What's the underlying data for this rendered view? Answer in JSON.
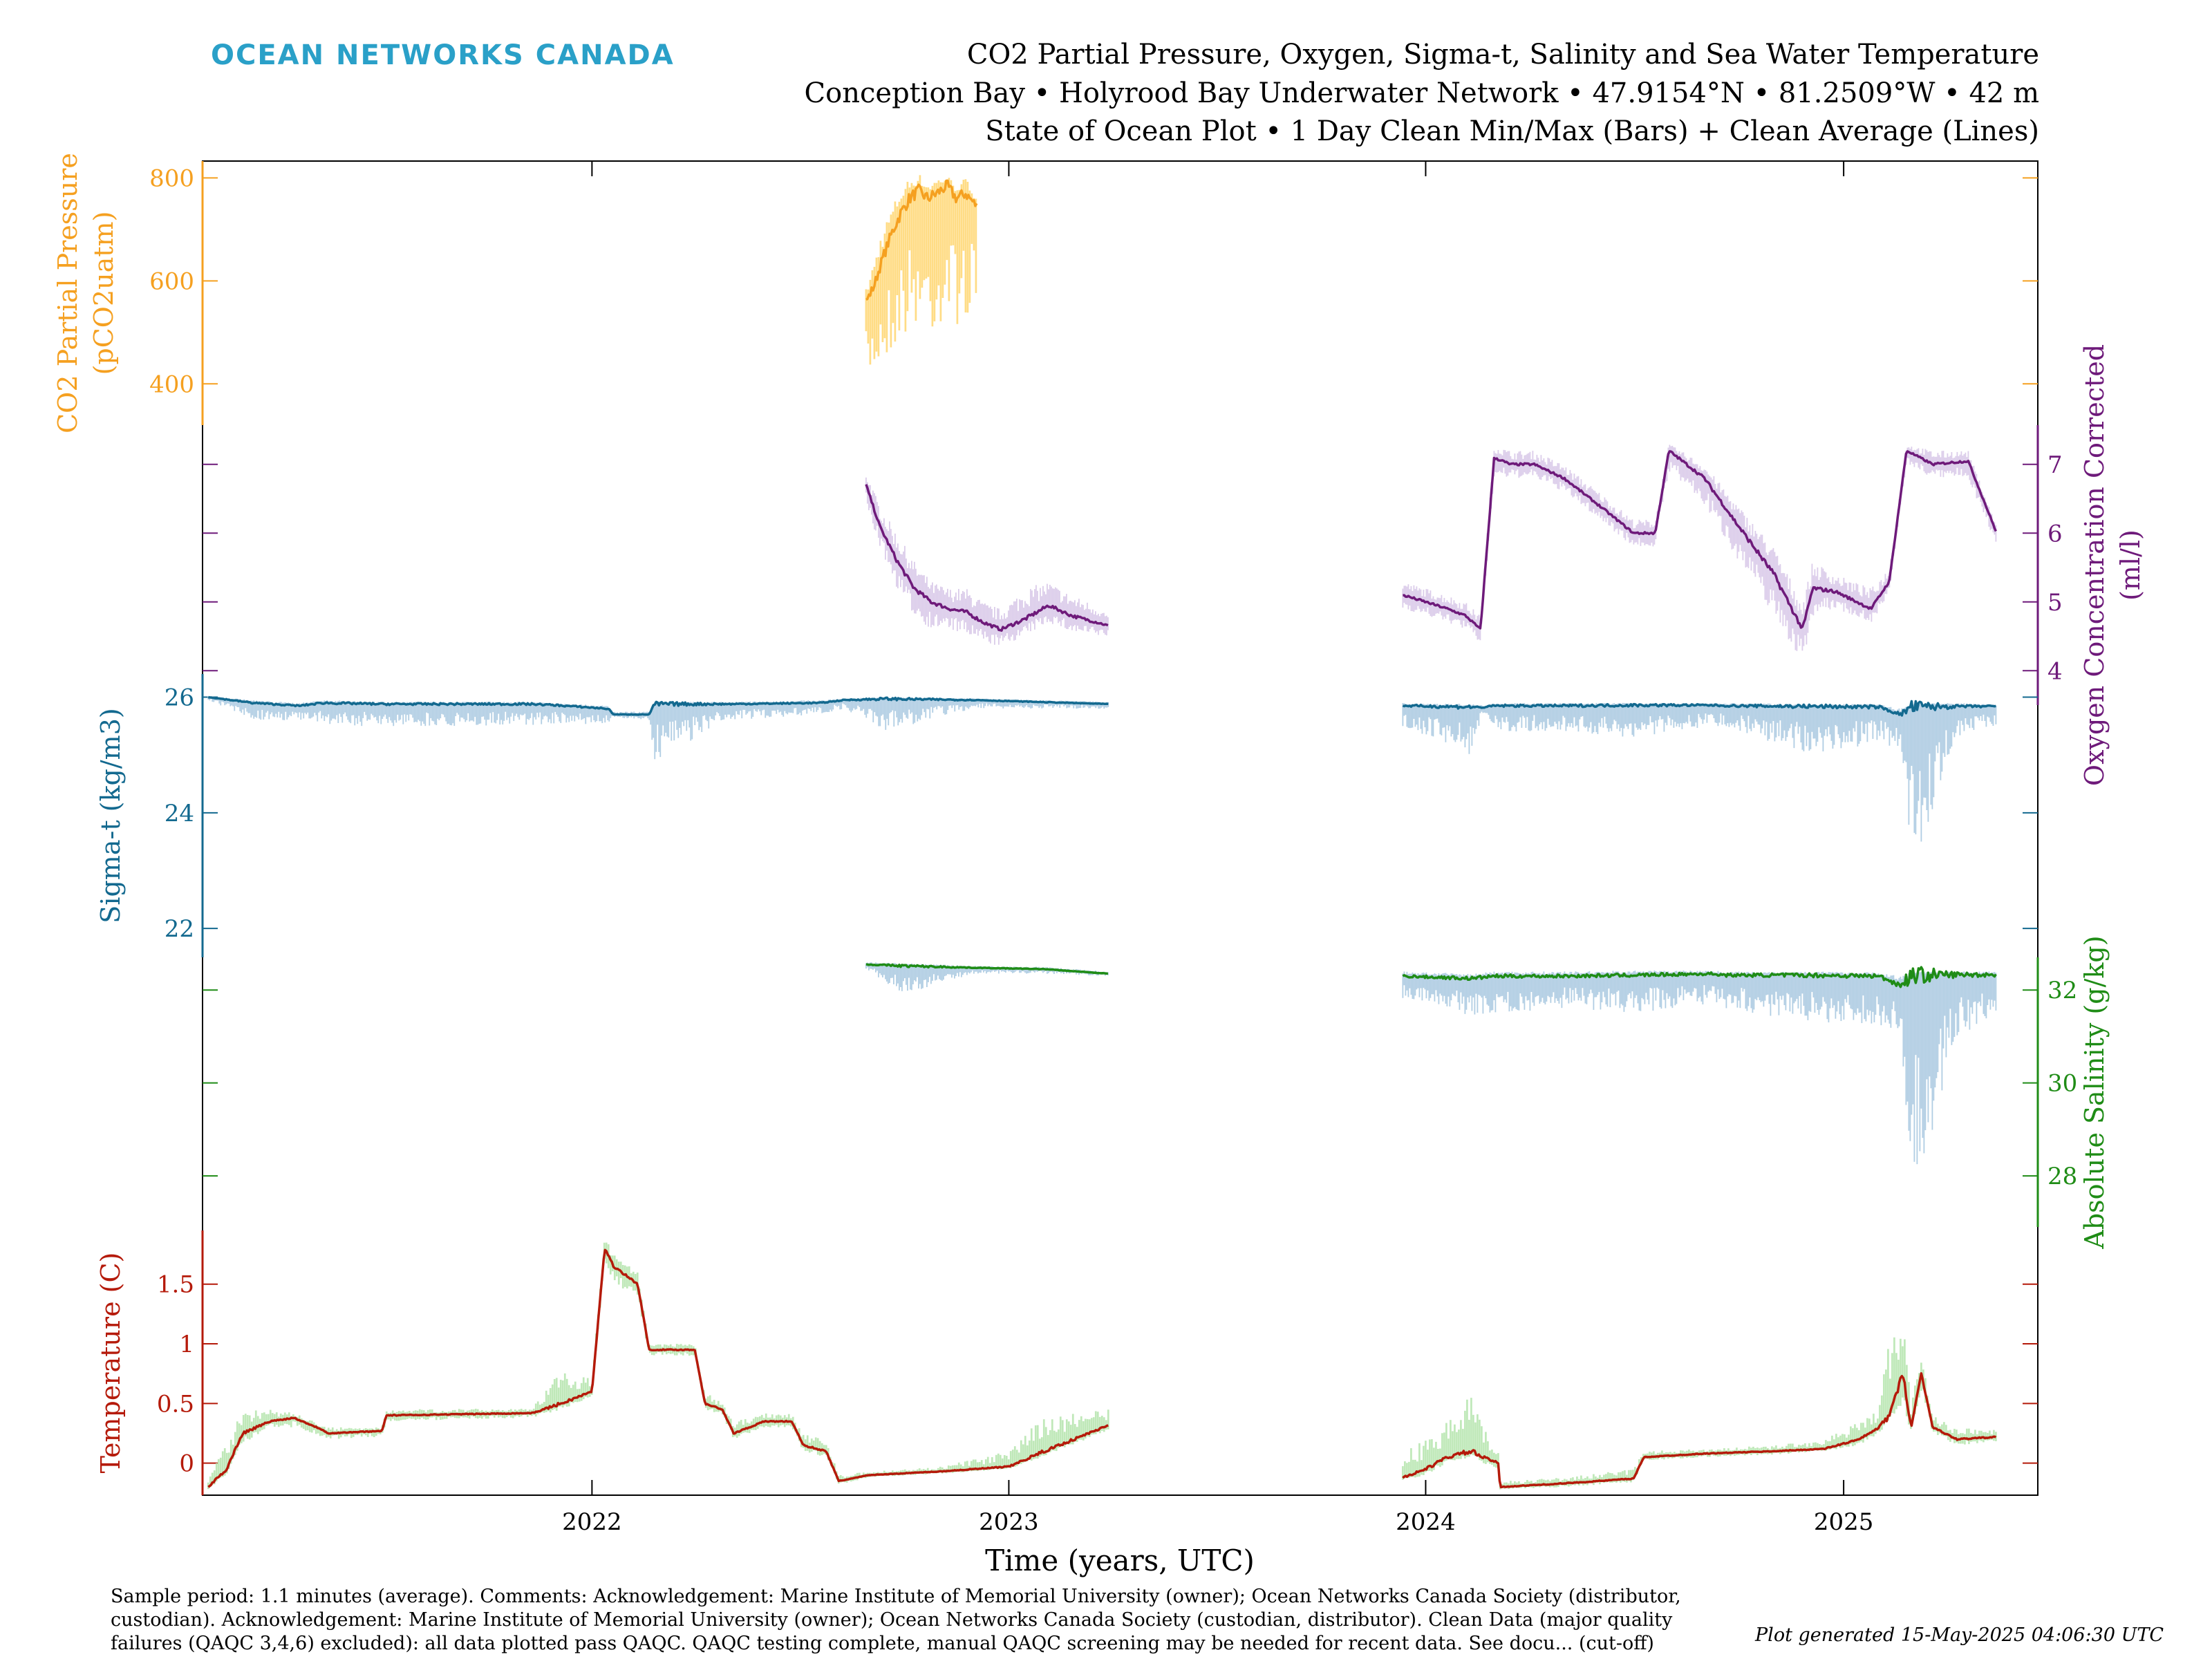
{
  "header": {
    "brand": "OCEAN NETWORKS CANADA",
    "title_lines": [
      "CO2 Partial Pressure, Oxygen, Sigma-t, Salinity and Sea Water Temperature",
      "Conception Bay • Holyrood Bay Underwater Network • 47.9154°N • 81.2509°W • 42 m",
      "State of Ocean Plot • 1 Day Clean Min/Max (Bars) + Clean Average (Lines)"
    ]
  },
  "footer": {
    "notes_lines": [
      "Sample period: 1.1 minutes (average). Comments: Acknowledgement: Marine Institute of Memorial University (owner); Ocean Networks Canada Society (distributor,",
      "custodian). Acknowledgement: Marine Institute of Memorial University (owner); Ocean Networks Canada Society (custodian, distributor). Clean Data (major quality",
      "failures (QAQC 3,4,6) excluded): all data plotted pass QAQC. QAQC testing complete, manual QAQC screening may be needed for recent data. See docu... (cut-off)"
    ],
    "generated": "Plot generated 15-May-2025 04:06:30 UTC"
  },
  "colors": {
    "co2_line": "#f5a020",
    "co2_bar": "#ffd878",
    "oxygen_line": "#6e1a7a",
    "oxygen_bar": "#d7c6e8",
    "sigma_line": "#13698f",
    "sigma_bar": "#a7c8e0",
    "salinity_line": "#1f8c16",
    "salinity_bar": "#a7c8e0",
    "temp_line": "#b51a0a",
    "temp_bar": "#b8e6b0",
    "brand": "#2aa0c8",
    "axis": "#000000"
  },
  "chart_data": {
    "type": "line",
    "xlabel": "Time (years, UTC)",
    "xlim": [
      "2021-01-25",
      "2025-06-20"
    ],
    "xticks": [
      "2022",
      "2023",
      "2024",
      "2025"
    ],
    "panels": [
      {
        "id": "co2",
        "ylabel_lines": [
          "CO2 Partial Pressure",
          "(pCO2uatm)"
        ],
        "side": "left",
        "ylim": [
          340,
          830
        ],
        "yticks": [
          400,
          600,
          800
        ],
        "series": [
          {
            "segment": "1",
            "x": [
              "2022-08-29",
              "2022-09-05",
              "2022-09-12",
              "2022-09-20",
              "2022-09-28",
              "2022-10-06",
              "2022-10-14",
              "2022-10-22",
              "2022-10-30",
              "2022-11-08",
              "2022-11-16",
              "2022-11-24",
              "2022-12-04"
            ],
            "y": [
              560,
              590,
              640,
              690,
              730,
              760,
              775,
              760,
              770,
              785,
              760,
              770,
              745
            ],
            "min": [
              395,
              420,
              440,
              460,
              480,
              500,
              510,
              490,
              500,
              530,
              515,
              520,
              520
            ],
            "max": [
              585,
              640,
              700,
              740,
              780,
              800,
              810,
              790,
              800,
              805,
              790,
              800,
              770
            ]
          }
        ]
      },
      {
        "id": "oxygen",
        "ylabel_lines": [
          "Oxygen Concentration Corrected",
          "(ml/l)"
        ],
        "side": "right",
        "ylim": [
          3.4,
          7.5
        ],
        "yticks": [
          4,
          5,
          6,
          7
        ],
        "series": [
          {
            "segment": "1",
            "x": [
              "2022-08-29",
              "2022-09-10",
              "2022-09-25",
              "2022-10-10",
              "2022-10-25",
              "2022-11-10",
              "2022-11-25",
              "2022-12-10",
              "2022-12-25",
              "2023-01-15",
              "2023-02-05",
              "2023-02-25",
              "2023-03-20",
              "2023-03-30"
            ],
            "y": [
              6.7,
              6.1,
              5.6,
              5.2,
              5.0,
              4.9,
              4.85,
              4.7,
              4.6,
              4.75,
              4.95,
              4.8,
              4.7,
              4.65
            ],
            "min": [
              6.4,
              5.8,
              5.2,
              4.8,
              4.6,
              4.6,
              4.5,
              4.4,
              4.35,
              4.5,
              4.7,
              4.55,
              4.5,
              4.5
            ],
            "max": [
              6.9,
              6.4,
              6.0,
              5.6,
              5.3,
              5.2,
              5.2,
              5.0,
              4.9,
              5.2,
              5.3,
              5.1,
              4.95,
              4.8
            ]
          },
          {
            "segment": "2",
            "x": [
              "2023-12-12",
              "2024-01-01",
              "2024-01-20",
              "2024-02-05",
              "2024-02-18",
              "2024-03-01",
              "2024-03-15",
              "2024-04-05",
              "2024-05-01",
              "2024-06-01",
              "2024-07-01",
              "2024-07-20",
              "2024-08-01",
              "2024-09-01",
              "2024-10-01",
              "2024-11-01",
              "2024-11-26",
              "2024-12-05",
              "2024-12-25",
              "2025-01-25",
              "2025-02-10",
              "2025-02-25",
              "2025-03-20",
              "2025-04-20",
              "2025-05-15"
            ],
            "y": [
              5.1,
              5.0,
              4.9,
              4.8,
              4.6,
              7.1,
              7.0,
              7.0,
              6.8,
              6.4,
              6.0,
              6.0,
              7.2,
              6.8,
              6.1,
              5.4,
              4.6,
              5.2,
              5.15,
              4.9,
              5.3,
              7.2,
              7.0,
              7.05,
              6.0
            ],
            "min": [
              4.9,
              4.8,
              4.7,
              4.6,
              4.4,
              6.8,
              6.8,
              6.8,
              6.6,
              6.2,
              5.8,
              5.8,
              6.9,
              6.4,
              5.6,
              4.8,
              4.1,
              4.8,
              4.9,
              4.7,
              5.1,
              7.0,
              6.8,
              6.8,
              5.8
            ],
            "max": [
              5.3,
              5.2,
              5.1,
              5.0,
              4.8,
              7.3,
              7.2,
              7.2,
              7.0,
              6.6,
              6.2,
              6.2,
              7.3,
              7.0,
              6.4,
              5.8,
              5.0,
              5.6,
              5.4,
              5.2,
              5.5,
              7.3,
              7.2,
              7.2,
              6.1
            ]
          }
        ]
      },
      {
        "id": "sigma",
        "ylabel_lines": [
          "Sigma-t (kg/m3)"
        ],
        "side": "left",
        "ylim": [
          21.5,
          26.4
        ],
        "yticks": [
          22,
          24,
          26
        ],
        "series": [
          {
            "segment": "1",
            "x": [
              "2021-01-30",
              "2021-03-10",
              "2021-04-20",
              "2021-05-10",
              "2021-07-01",
              "2021-11-10",
              "2021-12-01",
              "2022-01-15",
              "2022-01-20",
              "2022-02-20",
              "2022-02-25",
              "2022-05-01",
              "2022-07-20",
              "2022-08-10",
              "2022-09-15",
              "2022-12-01",
              "2023-03-30"
            ],
            "y": [
              26.0,
              25.9,
              25.85,
              25.9,
              25.88,
              25.88,
              25.86,
              25.8,
              25.7,
              25.7,
              25.88,
              25.88,
              25.9,
              25.95,
              25.97,
              25.95,
              25.88
            ],
            "min": [
              25.95,
              25.6,
              25.6,
              25.5,
              25.5,
              25.5,
              25.55,
              25.5,
              25.65,
              25.6,
              24.9,
              25.6,
              25.7,
              25.8,
              25.4,
              25.8,
              25.8
            ],
            "max": [
              26.02,
              25.95,
              25.9,
              25.95,
              25.92,
              25.92,
              25.9,
              25.85,
              25.75,
              25.75,
              25.92,
              25.92,
              25.95,
              25.98,
              26.0,
              25.98,
              25.92
            ]
          },
          {
            "segment": "2",
            "x": [
              "2023-12-12",
              "2024-02-10",
              "2024-02-20",
              "2024-03-01",
              "2024-05-01",
              "2024-07-01",
              "2024-09-08",
              "2024-09-20",
              "2024-12-01",
              "2025-02-01",
              "2025-02-20",
              "2025-03-01",
              "2025-04-10",
              "2025-05-15"
            ],
            "y": [
              25.85,
              25.83,
              25.82,
              25.85,
              25.85,
              25.86,
              25.86,
              25.85,
              25.84,
              25.83,
              25.7,
              25.83,
              25.84,
              25.84
            ],
            "min": [
              25.5,
              25.0,
              25.7,
              25.4,
              25.4,
              25.3,
              25.5,
              25.5,
              25.0,
              25.2,
              25.1,
              22.9,
              25.3,
              25.5
            ],
            "max": [
              25.9,
              25.88,
              25.86,
              25.9,
              25.9,
              25.9,
              25.9,
              25.9,
              25.88,
              25.88,
              25.8,
              25.9,
              25.9,
              25.88
            ]
          }
        ]
      },
      {
        "id": "salinity",
        "ylabel_lines": [
          "Absolute Salinity (g/kg)"
        ],
        "side": "right",
        "ylim": [
          26.9,
          33.0
        ],
        "yticks": [
          28,
          30,
          32
        ],
        "series": [
          {
            "segment": "1",
            "x": [
              "2022-08-29",
              "2022-10-01",
              "2022-12-01",
              "2023-02-01",
              "2023-03-30"
            ],
            "y": [
              32.55,
              32.52,
              32.48,
              32.45,
              32.35
            ],
            "min": [
              32.45,
              31.9,
              32.35,
              32.35,
              32.3
            ],
            "max": [
              32.6,
              32.58,
              32.52,
              32.5,
              32.4
            ]
          },
          {
            "segment": "2",
            "x": [
              "2023-12-12",
              "2024-02-10",
              "2024-03-01",
              "2024-05-01",
              "2024-07-01",
              "2024-09-08",
              "2024-09-20",
              "2024-12-01",
              "2025-02-01",
              "2025-02-20",
              "2025-03-01",
              "2025-04-10",
              "2025-05-15"
            ],
            "y": [
              32.3,
              32.25,
              32.3,
              32.3,
              32.32,
              32.35,
              32.32,
              32.32,
              32.3,
              32.1,
              32.32,
              32.33,
              32.33
            ],
            "min": [
              31.8,
              31.4,
              31.5,
              31.6,
              31.5,
              31.7,
              31.6,
              31.3,
              31.2,
              31.0,
              27.0,
              31.0,
              31.4
            ],
            "max": [
              32.4,
              32.35,
              32.4,
              32.4,
              32.42,
              32.42,
              32.4,
              32.4,
              32.38,
              32.3,
              32.4,
              32.4,
              32.4
            ]
          }
        ]
      },
      {
        "id": "temperature",
        "ylabel_lines": [
          "Temperature (C)"
        ],
        "side": "left",
        "ylim": [
          -0.28,
          1.95
        ],
        "yticks": [
          0,
          0.5,
          1,
          1.5
        ],
        "ytick_labels": [
          "0",
          "0.5",
          "1",
          "1.5"
        ],
        "series": [
          {
            "segment": "1",
            "x": [
              "2021-01-30",
              "2021-02-15",
              "2021-03-01",
              "2021-03-25",
              "2021-04-15",
              "2021-05-10",
              "2021-05-15",
              "2021-07-01",
              "2021-07-05",
              "2021-11-10",
              "2021-12-05",
              "2022-01-01",
              "2022-01-12",
              "2022-01-20",
              "2022-02-10",
              "2022-02-20",
              "2022-03-05",
              "2022-04-01",
              "2022-04-10",
              "2022-04-25",
              "2022-05-05",
              "2022-06-01",
              "2022-06-25",
              "2022-07-05",
              "2022-07-25",
              "2022-08-05",
              "2022-09-01",
              "2022-11-01",
              "2023-01-01",
              "2023-02-01",
              "2023-03-30"
            ],
            "y": [
              -0.2,
              -0.05,
              0.25,
              0.35,
              0.38,
              0.28,
              0.25,
              0.27,
              0.4,
              0.42,
              0.5,
              0.6,
              1.8,
              1.65,
              1.5,
              0.95,
              0.95,
              0.95,
              0.5,
              0.45,
              0.25,
              0.35,
              0.35,
              0.15,
              0.1,
              -0.15,
              -0.1,
              -0.07,
              -0.03,
              0.1,
              0.32
            ],
            "min": [
              -0.22,
              -0.1,
              0.15,
              0.3,
              0.3,
              0.22,
              0.2,
              0.22,
              0.35,
              0.38,
              0.45,
              0.55,
              1.7,
              1.5,
              1.4,
              0.9,
              0.9,
              0.9,
              0.45,
              0.4,
              0.2,
              0.3,
              0.3,
              0.1,
              0.05,
              -0.18,
              -0.12,
              -0.09,
              -0.05,
              0.05,
              0.28
            ],
            "max": [
              -0.1,
              0.2,
              0.45,
              0.45,
              0.42,
              0.32,
              0.3,
              0.3,
              0.45,
              0.46,
              0.8,
              0.7,
              1.9,
              1.75,
              1.6,
              1.0,
              1.0,
              1.0,
              0.6,
              0.5,
              0.35,
              0.42,
              0.42,
              0.25,
              0.2,
              -0.1,
              -0.07,
              -0.03,
              0.1,
              0.4,
              0.45
            ]
          },
          {
            "segment": "2",
            "x": [
              "2023-12-12",
              "2024-01-01",
              "2024-01-20",
              "2024-02-10",
              "2024-02-20",
              "2024-03-05",
              "2024-03-06",
              "2024-05-01",
              "2024-07-01",
              "2024-07-10",
              "2024-09-01",
              "2024-11-01",
              "2024-12-15",
              "2025-01-15",
              "2025-02-01",
              "2025-02-10",
              "2025-02-22",
              "2025-03-01",
              "2025-03-10",
              "2025-03-20",
              "2025-04-10",
              "2025-05-15"
            ],
            "y": [
              -0.12,
              -0.05,
              0.05,
              0.1,
              0.05,
              0.0,
              -0.2,
              -0.17,
              -0.13,
              0.05,
              0.08,
              0.1,
              0.12,
              0.2,
              0.3,
              0.4,
              0.75,
              0.3,
              0.75,
              0.3,
              0.2,
              0.22
            ],
            "min": [
              -0.15,
              -0.1,
              0.0,
              0.05,
              0.0,
              -0.05,
              -0.22,
              -0.2,
              -0.16,
              0.02,
              0.05,
              0.07,
              0.1,
              0.15,
              0.25,
              0.35,
              0.5,
              0.25,
              0.6,
              0.25,
              0.15,
              0.18
            ],
            "max": [
              0.1,
              0.2,
              0.35,
              0.6,
              0.3,
              0.1,
              -0.15,
              -0.12,
              -0.05,
              0.1,
              0.12,
              0.15,
              0.2,
              0.35,
              0.45,
              1.1,
              1.3,
              0.5,
              0.9,
              0.4,
              0.3,
              0.28
            ]
          }
        ]
      }
    ]
  }
}
